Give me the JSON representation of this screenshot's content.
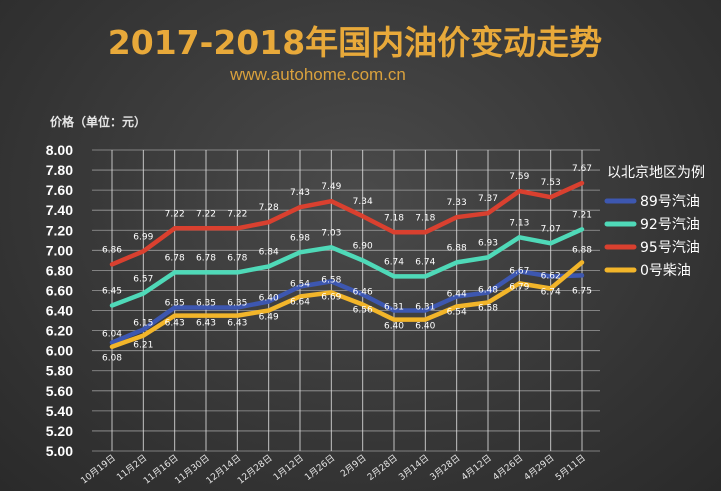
{
  "chart_data": {
    "type": "line",
    "title": "2017-2018年国内油价变动走势",
    "subtitle": "www.autohome.com.cn",
    "ylabel": "价格（单位：元）",
    "legend_title": "以北京地区为例",
    "legend_position": "right",
    "ylim": [
      5.0,
      8.0
    ],
    "yticks": [
      "8.00",
      "7.80",
      "7.60",
      "7.40",
      "7.20",
      "7.00",
      "6.80",
      "6.60",
      "6.40",
      "6.20",
      "6.00",
      "5.80",
      "5.60",
      "5.40",
      "5.20",
      "5.00"
    ],
    "categories": [
      "10月19日",
      "11月2日",
      "11月16日",
      "11月30日",
      "12月14日",
      "12月28日",
      "1月12日",
      "1月26日",
      "2月9日",
      "2月28日",
      "3月14日",
      "3月28日",
      "4月12日",
      "4月26日",
      "4月29日",
      "5月11日"
    ],
    "grid": true,
    "series": [
      {
        "name": "89号汽油",
        "color": "#3d57b0",
        "values": [
          6.08,
          6.21,
          6.43,
          6.43,
          6.43,
          6.49,
          6.64,
          6.69,
          6.56,
          6.4,
          6.4,
          6.54,
          6.58,
          6.79,
          6.74,
          6.75
        ],
        "labels": [
          "6.08",
          "6.21",
          "6.43",
          "6.43",
          "6.43",
          "6.49",
          "6.64",
          "6.69",
          "6.56",
          "6.40",
          "6.40",
          "6.54",
          "6.58",
          "6.79",
          "6.74",
          "6.75"
        ]
      },
      {
        "name": "92号汽油",
        "color": "#4fd9b8",
        "values": [
          6.45,
          6.57,
          6.78,
          6.78,
          6.78,
          6.84,
          6.98,
          7.03,
          6.9,
          6.74,
          6.74,
          6.88,
          6.93,
          7.13,
          7.07,
          7.21
        ],
        "labels": [
          "6.45",
          "6.57",
          "6.78",
          "6.78",
          "6.78",
          "6.84",
          "6.98",
          "7.03",
          "6.90",
          "6.74",
          "6.74",
          "6.88",
          "6.93",
          "7.13",
          "7.07",
          "7.21"
        ]
      },
      {
        "name": "95号汽油",
        "color": "#d9402f",
        "values": [
          6.86,
          6.99,
          7.22,
          7.22,
          7.22,
          7.28,
          7.43,
          7.49,
          7.34,
          7.18,
          7.18,
          7.33,
          7.37,
          7.59,
          7.53,
          7.67
        ],
        "labels": [
          "6.86",
          "6.99",
          "7.22",
          "7.22",
          "7.22",
          "7.28",
          "7.43",
          "7.49",
          "7.34",
          "7.18",
          "7.18",
          "7.33",
          "7.37",
          "7.59",
          "7.53",
          "7.67"
        ]
      },
      {
        "name": "0号柴油",
        "color": "#f2b52a",
        "values": [
          6.04,
          6.15,
          6.35,
          6.35,
          6.35,
          6.4,
          6.54,
          6.58,
          6.46,
          6.31,
          6.31,
          6.44,
          6.48,
          6.67,
          6.62,
          6.88
        ],
        "labels": [
          "6.04",
          "6.15",
          "6.35",
          "6.35",
          "6.35",
          "6.40",
          "6.54",
          "6.58",
          "6.46",
          "6.31",
          "6.31",
          "6.44",
          "6.48",
          "6.67",
          "6.62",
          "6.88"
        ]
      }
    ]
  },
  "colors": {
    "title": "#e8a93a",
    "subtitle": "#d9a13d",
    "text": "#e6e6e6",
    "grid": "#cfcfcf"
  }
}
